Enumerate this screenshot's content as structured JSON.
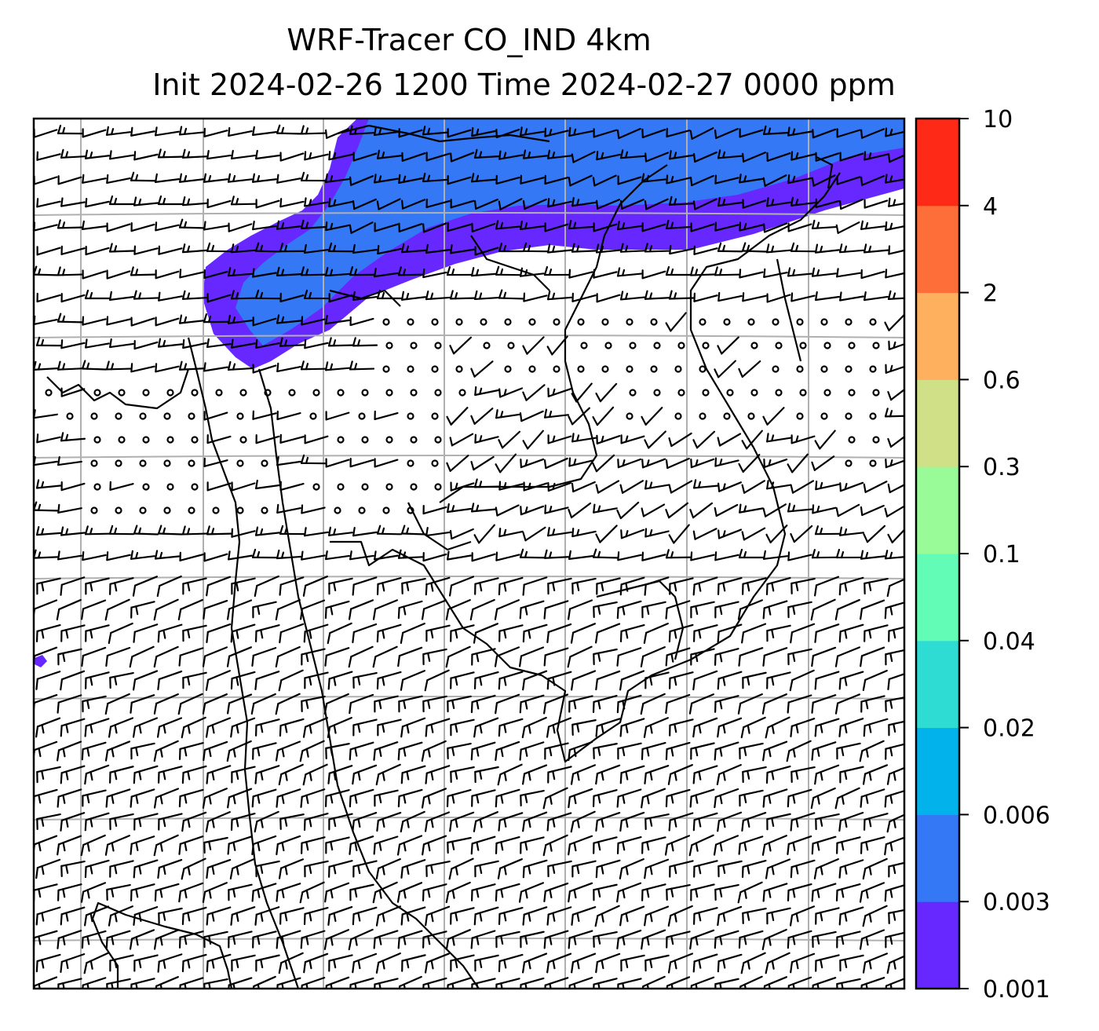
{
  "title": {
    "line1": "WRF-Tracer CO_IND 4km",
    "line2": "Init 2024-02-26 1200 Time 2024-02-27 0000 ppm"
  },
  "colorbar": {
    "levels": [
      "0.001",
      "0.003",
      "0.006",
      "0.02",
      "0.04",
      "0.1",
      "0.3",
      "0.6",
      "2",
      "4",
      "10"
    ],
    "colors": [
      "#6628fe",
      "#3478f5",
      "#02b2ea",
      "#2edcd4",
      "#62fcb7",
      "#98fb98",
      "#d0e086",
      "#feb05e",
      "#fe6e38",
      "#fe2a17"
    ]
  },
  "map": {
    "plume_colors": {
      "low": "#6628fe",
      "mid": "#3478f5"
    },
    "grid_color": "#b0b0b0",
    "wind_symbols": [
      "wind-barb",
      "calm-circle"
    ]
  }
}
